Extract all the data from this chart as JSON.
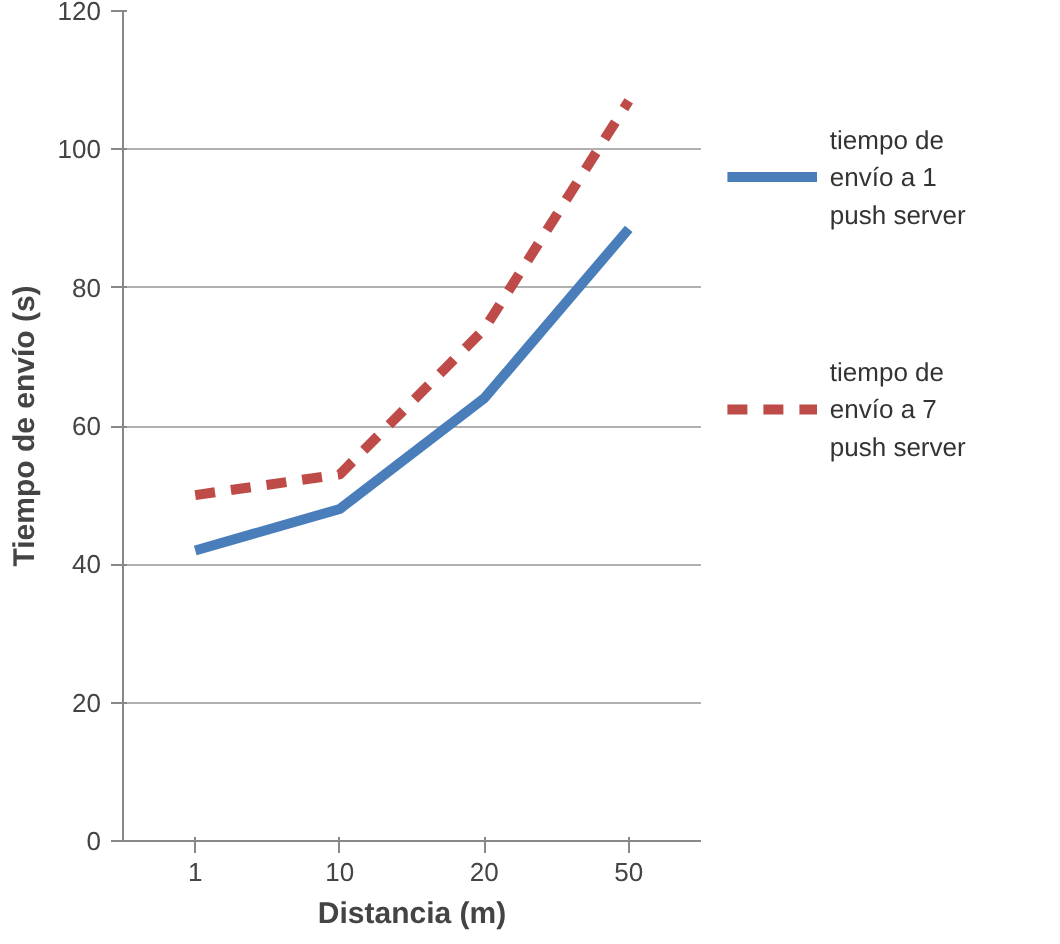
{
  "chart_data": {
    "type": "line",
    "xlabel": "Distancia (m)",
    "ylabel": "Tiempo de envío (s)",
    "categories": [
      "1",
      "10",
      "20",
      "50"
    ],
    "series": [
      {
        "name": "tiempo de envío a 1 push server",
        "color": "#4a7ebb",
        "values": [
          42,
          48,
          64,
          88.5
        ],
        "line_style": "solid"
      },
      {
        "name": "tiempo de envío a 7 push server",
        "color": "#be4b48",
        "values": [
          50,
          53,
          74,
          107
        ],
        "line_style": "dashed"
      }
    ],
    "ylim": [
      0,
      120
    ],
    "yticks": [
      0,
      20,
      40,
      60,
      80,
      100,
      120
    ],
    "grid": "y",
    "legend": "right",
    "marker": "none"
  }
}
